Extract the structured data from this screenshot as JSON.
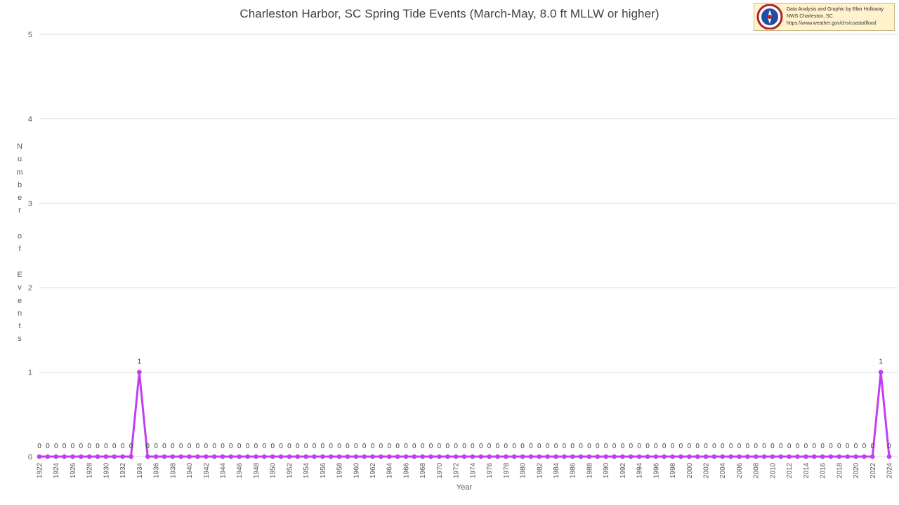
{
  "chart_data": {
    "type": "line",
    "title": "Charleston Harbor, SC Spring Tide Events (March-May, 8.0 ft MLLW or higher)",
    "xlabel": "Year",
    "ylabel": "Number of Events",
    "ylim": [
      0,
      5
    ],
    "yticks": [
      0,
      1,
      2,
      3,
      4,
      5
    ],
    "grid": true,
    "legend": "none",
    "x_start": 1922,
    "x_end": 2024,
    "x_tick_step": 2,
    "series": [
      {
        "color": "#c13ff0",
        "peaks": [
          {
            "year": 1934,
            "value": 1
          },
          {
            "year": 2023,
            "value": 1
          }
        ],
        "default_value": 0
      }
    ],
    "data_labels": true
  },
  "credit": {
    "line1": "Data Analysis and Graphic by Blair Holloway",
    "line2": "NWS Charleston, SC",
    "line3": "https://www.weather.gov/chs/coastalflood"
  }
}
